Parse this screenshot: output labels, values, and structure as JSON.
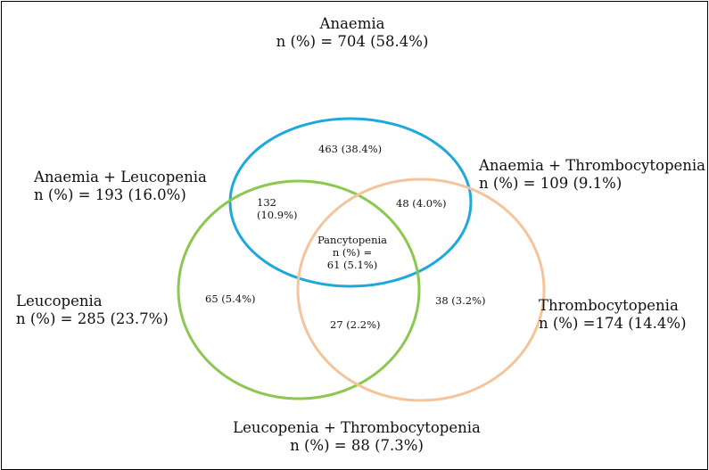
{
  "colors": {
    "anaemia": "#1ea8dc",
    "leucopenia": "#8cc850",
    "thrombocytopenia": "#f4c49a",
    "border": "#000000"
  },
  "sets": {
    "anaemia": {
      "name": "Anaemia",
      "count": "n (%) = 704 (58.4%)"
    },
    "leucopenia": {
      "name": "Leucopenia",
      "count": "n (%) = 285 (23.7%)"
    },
    "thrombocytopenia": {
      "name": "Thrombocytopenia",
      "count": "n (%) =174 (14.4%)"
    }
  },
  "pairs": {
    "anaemia_leucopenia": {
      "name": "Anaemia + Leucopenia",
      "count": "n (%) = 193 (16.0%)"
    },
    "anaemia_thrombocytopenia": {
      "name": "Anaemia + Thrombocytopenia",
      "count": "n (%) = 109 (9.1%)"
    },
    "leucopenia_thrombocytopenia": {
      "name": "Leucopenia + Thrombocytopenia",
      "count": "n (%) = 88 (7.3%)"
    }
  },
  "regions": {
    "anaemia_only": "463 (38.4%)",
    "anaemia_leucopenia_line1": "132",
    "anaemia_leucopenia_line2": "(10.9%)",
    "anaemia_thrombocytopenia": "48 (4.0%)",
    "leucopenia_only": "65 (5.4%)",
    "thrombocytopenia_only": "38 (3.2%)",
    "leucopenia_thrombocytopenia": "27 (2.2%)",
    "pancytopenia_line1": "Pancytopenia",
    "pancytopenia_line2": "n (%) =",
    "pancytopenia_line3": "61 (5.1%)"
  }
}
